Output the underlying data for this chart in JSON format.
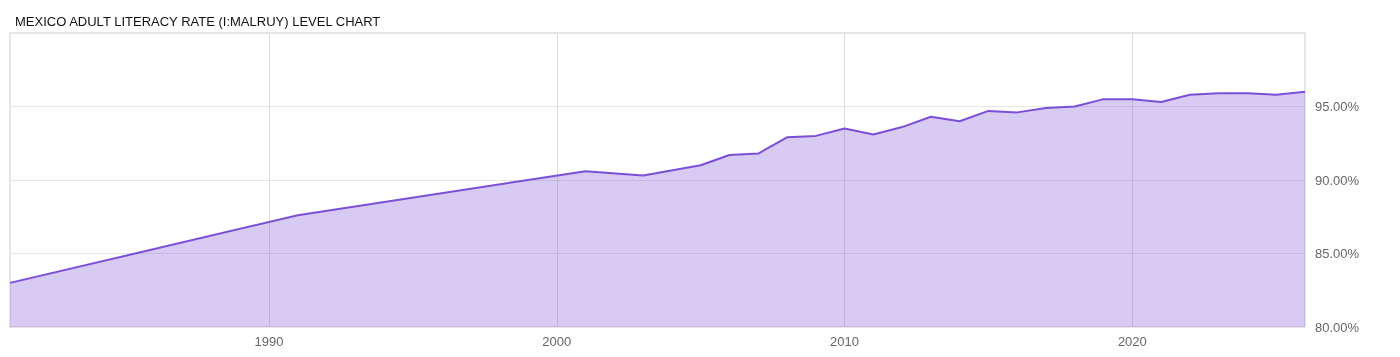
{
  "chart_data": {
    "type": "area",
    "title": "MEXICO ADULT LITERACY RATE (I:MALRUY) LEVEL CHART",
    "x": [
      1981,
      1991,
      2001,
      2003,
      2005,
      2006,
      2007,
      2008,
      2009,
      2010,
      2011,
      2012,
      2013,
      2014,
      2015,
      2016,
      2017,
      2018,
      2019,
      2020,
      2021,
      2022,
      2023,
      2024,
      2025,
      2026
    ],
    "series": [
      {
        "color": "#7b4fd6",
        "values": [
          83.0,
          87.6,
          90.6,
          90.3,
          91.0,
          91.7,
          91.8,
          92.9,
          93.0,
          93.5,
          93.1,
          93.6,
          94.3,
          94.0,
          94.7,
          94.6,
          94.9,
          95.0,
          95.5,
          95.5,
          95.3,
          95.8,
          95.9,
          95.9,
          95.8,
          96.0
        ]
      }
    ],
    "xlim": [
      1981,
      2026
    ],
    "xticks": [
      1990,
      2000,
      2010,
      2020
    ],
    "ylim": [
      80,
      100
    ],
    "yticks": [
      {
        "value": 80,
        "label": "80.00%"
      },
      {
        "value": 85,
        "label": "85.00%"
      },
      {
        "value": 90,
        "label": "90.00%"
      },
      {
        "value": 95,
        "label": "95.00%"
      }
    ],
    "grid": true,
    "marker": "none",
    "line_style": "solid"
  }
}
